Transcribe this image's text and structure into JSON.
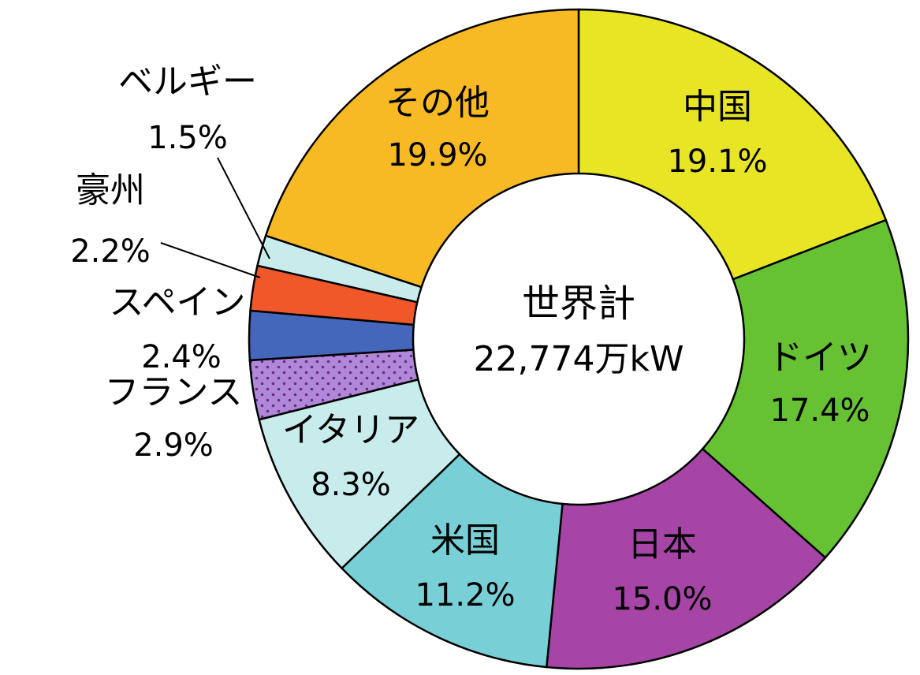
{
  "chart_data": {
    "type": "pie",
    "donut": true,
    "center_title": "世界計",
    "center_total": "22,774万kW",
    "slices": [
      {
        "name": "中国",
        "value": 19.1,
        "label": "19.1%",
        "color": "#e8e624"
      },
      {
        "name": "ドイツ",
        "value": 17.4,
        "label": "17.4%",
        "color": "#66c233"
      },
      {
        "name": "日本",
        "value": 15.0,
        "label": "15.0%",
        "color": "#a645a6"
      },
      {
        "name": "米国",
        "value": 11.2,
        "label": "11.2%",
        "color": "#78d0d6"
      },
      {
        "name": "イタリア",
        "value": 8.3,
        "label": "8.3%",
        "color": "#c8ecec"
      },
      {
        "name": "フランス",
        "value": 2.9,
        "label": "2.9%",
        "color": "#b088d8",
        "pattern": "dots"
      },
      {
        "name": "スペイン",
        "value": 2.4,
        "label": "2.4%",
        "color": "#4466bb"
      },
      {
        "name": "豪州",
        "value": 2.2,
        "label": "2.2%",
        "color": "#f0582a"
      },
      {
        "name": "ベルギー",
        "value": 1.5,
        "label": "1.5%",
        "color": "#c8ecec"
      },
      {
        "name": "その他",
        "value": 19.9,
        "label": "19.9%",
        "color": "#f8ba24"
      }
    ]
  }
}
